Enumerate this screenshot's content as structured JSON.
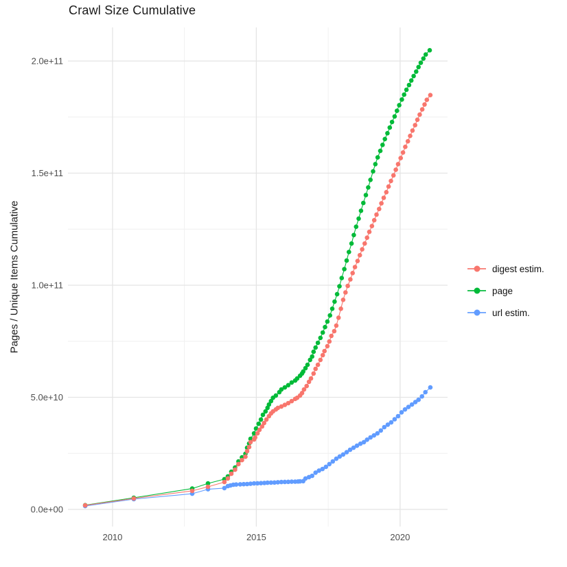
{
  "chart_data": {
    "type": "line",
    "title": "Crawl Size Cumulative",
    "xlabel": "",
    "ylabel": "Pages / Unique Items Cumulative",
    "legend_position": "right",
    "grid": "major+minor",
    "value_scale": "values are cumulative counts in units of 1e9 (billions)",
    "xlim": [
      2008.45,
      2021.65
    ],
    "ylim": [
      0,
      215
    ],
    "colors": {
      "background": "#FFFFFF",
      "grid_major": "#E4E4E4",
      "grid_minor": "#EFEFEF",
      "tick_label": "#4D4D4D",
      "text": "#1A1A1A"
    },
    "x_ticks": [
      {
        "v": 2010,
        "label": "2010"
      },
      {
        "v": 2015,
        "label": "2015"
      },
      {
        "v": 2020,
        "label": "2020"
      }
    ],
    "x_minor": [
      2012.5,
      2017.5
    ],
    "y_ticks": [
      {
        "v": 0,
        "label": "0.0e+00"
      },
      {
        "v": 50,
        "label": "5.0e+10"
      },
      {
        "v": 100,
        "label": "1.0e+11"
      },
      {
        "v": 150,
        "label": "1.5e+11"
      },
      {
        "v": 200,
        "label": "2.0e+11"
      }
    ],
    "y_minor": [
      25,
      75,
      125,
      175
    ],
    "series": [
      {
        "name": "digest estim.",
        "color": "#F8766D",
        "points": [
          [
            2009.05,
            1.8
          ],
          [
            2010.74,
            4.9
          ],
          [
            2012.77,
            8.3
          ],
          [
            2013.32,
            10.1
          ],
          [
            2013.89,
            12.2
          ],
          [
            2014.01,
            13.8
          ],
          [
            2014.13,
            15.9
          ],
          [
            2014.26,
            17.7
          ],
          [
            2014.38,
            20.2
          ],
          [
            2014.5,
            22.0
          ],
          [
            2014.62,
            23.5
          ],
          [
            2014.68,
            26.0
          ],
          [
            2014.75,
            27.8
          ],
          [
            2014.8,
            30.0
          ],
          [
            2014.92,
            31.2
          ],
          [
            2014.96,
            32.1
          ],
          [
            2015.04,
            33.9
          ],
          [
            2015.11,
            35.5
          ],
          [
            2015.2,
            37.0
          ],
          [
            2015.27,
            38.5
          ],
          [
            2015.35,
            40.1
          ],
          [
            2015.44,
            41.6
          ],
          [
            2015.51,
            42.8
          ],
          [
            2015.58,
            43.7
          ],
          [
            2015.68,
            44.6
          ],
          [
            2015.75,
            45.3
          ],
          [
            2015.87,
            45.9
          ],
          [
            2015.99,
            46.6
          ],
          [
            2016.11,
            47.4
          ],
          [
            2016.23,
            48.3
          ],
          [
            2016.35,
            49.3
          ],
          [
            2016.42,
            49.8
          ],
          [
            2016.52,
            50.8
          ],
          [
            2016.59,
            51.9
          ],
          [
            2016.66,
            53.5
          ],
          [
            2016.75,
            55.0
          ],
          [
            2016.83,
            56.9
          ],
          [
            2016.9,
            58.4
          ],
          [
            2016.99,
            60.6
          ],
          [
            2017.06,
            62.7
          ],
          [
            2017.14,
            64.5
          ],
          [
            2017.23,
            66.7
          ],
          [
            2017.31,
            68.8
          ],
          [
            2017.37,
            70.6
          ],
          [
            2017.47,
            72.8
          ],
          [
            2017.54,
            74.9
          ],
          [
            2017.61,
            77.4
          ],
          [
            2017.71,
            79.5
          ],
          [
            2017.78,
            82.0
          ],
          [
            2017.86,
            85.5
          ],
          [
            2017.94,
            89.5
          ],
          [
            2018.02,
            93.5
          ],
          [
            2018.1,
            96.8
          ],
          [
            2018.18,
            99.7
          ],
          [
            2018.27,
            102.6
          ],
          [
            2018.35,
            105.4
          ],
          [
            2018.43,
            108.1
          ],
          [
            2018.52,
            110.8
          ],
          [
            2018.6,
            113.4
          ],
          [
            2018.68,
            116.0
          ],
          [
            2018.77,
            118.6
          ],
          [
            2018.85,
            121.2
          ],
          [
            2018.93,
            123.8
          ],
          [
            2019.02,
            126.4
          ],
          [
            2019.1,
            129.0
          ],
          [
            2019.18,
            131.5
          ],
          [
            2019.27,
            134.0
          ],
          [
            2019.35,
            136.5
          ],
          [
            2019.43,
            139.0
          ],
          [
            2019.52,
            141.5
          ],
          [
            2019.6,
            144.0
          ],
          [
            2019.68,
            146.5
          ],
          [
            2019.77,
            149.0
          ],
          [
            2019.85,
            151.5
          ],
          [
            2019.93,
            154.0
          ],
          [
            2020.02,
            156.7
          ],
          [
            2020.1,
            159.2
          ],
          [
            2020.18,
            161.7
          ],
          [
            2020.27,
            164.2
          ],
          [
            2020.35,
            166.6
          ],
          [
            2020.43,
            169.0
          ],
          [
            2020.52,
            171.4
          ],
          [
            2020.6,
            173.8
          ],
          [
            2020.68,
            176.1
          ],
          [
            2020.77,
            178.4
          ],
          [
            2020.85,
            180.6
          ],
          [
            2020.93,
            182.7
          ],
          [
            2021.05,
            184.8
          ]
        ]
      },
      {
        "name": "page",
        "color": "#00BA38",
        "points": [
          [
            2009.05,
            1.9
          ],
          [
            2010.74,
            5.2
          ],
          [
            2012.77,
            9.3
          ],
          [
            2013.32,
            11.6
          ],
          [
            2013.89,
            13.5
          ],
          [
            2014.01,
            14.7
          ],
          [
            2014.13,
            16.8
          ],
          [
            2014.26,
            18.7
          ],
          [
            2014.38,
            21.4
          ],
          [
            2014.5,
            23.2
          ],
          [
            2014.62,
            24.8
          ],
          [
            2014.68,
            27.5
          ],
          [
            2014.75,
            29.4
          ],
          [
            2014.8,
            31.5
          ],
          [
            2014.92,
            33.9
          ],
          [
            2014.99,
            36.1
          ],
          [
            2015.08,
            38.2
          ],
          [
            2015.16,
            40.1
          ],
          [
            2015.23,
            42.2
          ],
          [
            2015.32,
            43.7
          ],
          [
            2015.39,
            45.3
          ],
          [
            2015.44,
            46.8
          ],
          [
            2015.51,
            48.3
          ],
          [
            2015.58,
            49.8
          ],
          [
            2015.68,
            50.8
          ],
          [
            2015.8,
            52.3
          ],
          [
            2015.87,
            53.5
          ],
          [
            2015.99,
            54.4
          ],
          [
            2016.11,
            55.4
          ],
          [
            2016.23,
            56.6
          ],
          [
            2016.35,
            57.5
          ],
          [
            2016.42,
            58.4
          ],
          [
            2016.52,
            59.6
          ],
          [
            2016.59,
            60.6
          ],
          [
            2016.63,
            61.5
          ],
          [
            2016.71,
            63.0
          ],
          [
            2016.78,
            64.5
          ],
          [
            2016.87,
            66.7
          ],
          [
            2016.94,
            68.2
          ],
          [
            2016.99,
            70.3
          ],
          [
            2017.06,
            72.2
          ],
          [
            2017.14,
            74.3
          ],
          [
            2017.23,
            76.5
          ],
          [
            2017.31,
            78.9
          ],
          [
            2017.39,
            81.3
          ],
          [
            2017.47,
            83.8
          ],
          [
            2017.56,
            86.5
          ],
          [
            2017.64,
            89.5
          ],
          [
            2017.72,
            92.7
          ],
          [
            2017.81,
            96.0
          ],
          [
            2017.89,
            99.5
          ],
          [
            2017.97,
            103.2
          ],
          [
            2018.06,
            107.2
          ],
          [
            2018.14,
            111.0
          ],
          [
            2018.22,
            114.8
          ],
          [
            2018.31,
            118.6
          ],
          [
            2018.39,
            122.4
          ],
          [
            2018.47,
            126.1
          ],
          [
            2018.56,
            129.7
          ],
          [
            2018.64,
            133.2
          ],
          [
            2018.72,
            136.7
          ],
          [
            2018.81,
            140.2
          ],
          [
            2018.89,
            143.6
          ],
          [
            2018.97,
            147.0
          ],
          [
            2019.06,
            150.8
          ],
          [
            2019.14,
            154.0
          ],
          [
            2019.22,
            157.0
          ],
          [
            2019.31,
            159.9
          ],
          [
            2019.39,
            162.6
          ],
          [
            2019.47,
            165.2
          ],
          [
            2019.56,
            167.8
          ],
          [
            2019.64,
            170.3
          ],
          [
            2019.72,
            172.8
          ],
          [
            2019.81,
            175.3
          ],
          [
            2019.89,
            177.8
          ],
          [
            2019.97,
            180.3
          ],
          [
            2020.06,
            182.8
          ],
          [
            2020.14,
            185.0
          ],
          [
            2020.22,
            187.2
          ],
          [
            2020.31,
            189.3
          ],
          [
            2020.39,
            191.3
          ],
          [
            2020.47,
            193.3
          ],
          [
            2020.56,
            195.3
          ],
          [
            2020.64,
            197.3
          ],
          [
            2020.72,
            199.2
          ],
          [
            2020.81,
            201.1
          ],
          [
            2020.89,
            202.9
          ],
          [
            2021.03,
            204.8
          ]
        ]
      },
      {
        "name": "url estim.",
        "color": "#619CFF",
        "points": [
          [
            2009.05,
            1.5
          ],
          [
            2010.74,
            4.6
          ],
          [
            2012.77,
            7.0
          ],
          [
            2013.32,
            9.0
          ],
          [
            2013.89,
            9.5
          ],
          [
            2014.01,
            10.4
          ],
          [
            2014.1,
            10.7
          ],
          [
            2014.2,
            11.0
          ],
          [
            2014.3,
            11.1
          ],
          [
            2014.44,
            11.2
          ],
          [
            2014.56,
            11.25
          ],
          [
            2014.68,
            11.3
          ],
          [
            2014.8,
            11.45
          ],
          [
            2014.92,
            11.6
          ],
          [
            2015.04,
            11.65
          ],
          [
            2015.16,
            11.7
          ],
          [
            2015.28,
            11.8
          ],
          [
            2015.39,
            11.9
          ],
          [
            2015.51,
            11.95
          ],
          [
            2015.63,
            12.0
          ],
          [
            2015.75,
            12.1
          ],
          [
            2015.87,
            12.2
          ],
          [
            2015.99,
            12.25
          ],
          [
            2016.11,
            12.3
          ],
          [
            2016.23,
            12.35
          ],
          [
            2016.35,
            12.4
          ],
          [
            2016.45,
            12.45
          ],
          [
            2016.52,
            12.5
          ],
          [
            2016.63,
            12.6
          ],
          [
            2016.71,
            13.8
          ],
          [
            2016.83,
            14.4
          ],
          [
            2016.94,
            15.0
          ],
          [
            2017.06,
            16.4
          ],
          [
            2017.18,
            17.3
          ],
          [
            2017.3,
            18.0
          ],
          [
            2017.42,
            19.0
          ],
          [
            2017.54,
            20.2
          ],
          [
            2017.66,
            21.4
          ],
          [
            2017.78,
            22.6
          ],
          [
            2017.9,
            23.6
          ],
          [
            2018.02,
            24.5
          ],
          [
            2018.14,
            25.5
          ],
          [
            2018.26,
            26.6
          ],
          [
            2018.38,
            27.5
          ],
          [
            2018.5,
            28.4
          ],
          [
            2018.62,
            29.3
          ],
          [
            2018.74,
            30.0
          ],
          [
            2018.85,
            31.1
          ],
          [
            2018.97,
            32.1
          ],
          [
            2019.09,
            33.0
          ],
          [
            2019.21,
            33.9
          ],
          [
            2019.33,
            35.2
          ],
          [
            2019.45,
            36.7
          ],
          [
            2019.57,
            37.8
          ],
          [
            2019.69,
            38.8
          ],
          [
            2019.81,
            40.2
          ],
          [
            2019.93,
            41.6
          ],
          [
            2020.05,
            43.3
          ],
          [
            2020.17,
            44.6
          ],
          [
            2020.29,
            45.7
          ],
          [
            2020.41,
            46.8
          ],
          [
            2020.53,
            47.9
          ],
          [
            2020.64,
            48.9
          ],
          [
            2020.76,
            50.4
          ],
          [
            2020.88,
            52.3
          ],
          [
            2021.05,
            54.4
          ]
        ]
      }
    ]
  }
}
